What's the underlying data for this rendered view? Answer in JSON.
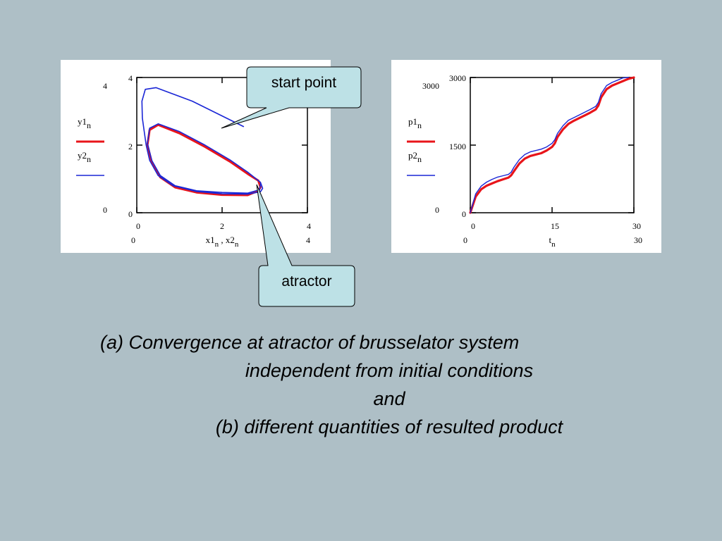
{
  "chart_data": [
    {
      "type": "line",
      "title": "",
      "xlabel": "x1n , x2n",
      "xlabel_parts": {
        "a": "x1",
        "a_sub": "n",
        "sep": " , ",
        "b": "x2",
        "b_sub": "n"
      },
      "ylabel": "",
      "xlim": [
        0,
        4
      ],
      "ylim": [
        0,
        4
      ],
      "x_ticks": [
        "0",
        "2",
        "4"
      ],
      "y_ticks": [
        "0",
        "2",
        "4"
      ],
      "x_range_labels": [
        "0",
        "4"
      ],
      "y_range_labels": [
        "0",
        "4"
      ],
      "legend": [
        {
          "name": "y1",
          "sub": "n",
          "color": "#e8141a"
        },
        {
          "name": "y2",
          "sub": "n",
          "color": "#1a26d6"
        }
      ],
      "legend_position": "left",
      "series": [
        {
          "name": "y1n",
          "color": "#e8141a",
          "points": [
            [
              2.85,
              0.65
            ],
            [
              2.6,
              0.52
            ],
            [
              2.0,
              0.53
            ],
            [
              1.4,
              0.6
            ],
            [
              0.9,
              0.75
            ],
            [
              0.55,
              1.05
            ],
            [
              0.35,
              1.5
            ],
            [
              0.25,
              2.0
            ],
            [
              0.3,
              2.45
            ],
            [
              0.5,
              2.6
            ],
            [
              1.0,
              2.35
            ],
            [
              1.6,
              1.95
            ],
            [
              2.2,
              1.5
            ],
            [
              2.6,
              1.15
            ],
            [
              2.85,
              0.95
            ],
            [
              2.9,
              0.75
            ],
            [
              2.85,
              0.65
            ]
          ]
        },
        {
          "name": "y2n",
          "color": "#1a26d6",
          "points": [
            [
              2.5,
              2.55
            ],
            [
              1.3,
              3.3
            ],
            [
              0.45,
              3.7
            ],
            [
              0.2,
              3.65
            ],
            [
              0.12,
              3.3
            ],
            [
              0.13,
              2.8
            ],
            [
              0.18,
              2.35
            ],
            [
              0.22,
              2.0
            ],
            [
              0.3,
              1.55
            ],
            [
              0.5,
              1.1
            ],
            [
              0.85,
              0.8
            ],
            [
              1.4,
              0.63
            ],
            [
              2.0,
              0.56
            ],
            [
              2.6,
              0.55
            ],
            [
              2.9,
              0.62
            ],
            [
              2.95,
              0.72
            ],
            [
              2.9,
              0.9
            ],
            [
              2.6,
              1.2
            ],
            [
              2.2,
              1.55
            ],
            [
              1.6,
              2.0
            ],
            [
              1.0,
              2.4
            ],
            [
              0.5,
              2.63
            ],
            [
              0.3,
              2.5
            ],
            [
              0.25,
              2.05
            ],
            [
              0.35,
              1.55
            ],
            [
              0.55,
              1.1
            ],
            [
              0.9,
              0.8
            ],
            [
              1.4,
              0.65
            ],
            [
              2.0,
              0.6
            ],
            [
              2.6,
              0.58
            ],
            [
              2.88,
              0.68
            ],
            [
              2.9,
              0.85
            ]
          ]
        }
      ]
    },
    {
      "type": "line",
      "title": "",
      "xlabel": "tn",
      "xlabel_parts": {
        "a": "t",
        "a_sub": "n"
      },
      "ylabel": "",
      "xlim": [
        0,
        30
      ],
      "ylim": [
        0,
        3000
      ],
      "x_ticks": [
        "0",
        "15",
        "30"
      ],
      "y_ticks": [
        "0",
        "1500",
        "3000"
      ],
      "x_range_labels": [
        "0",
        "30"
      ],
      "y_range_labels": [
        "0",
        "3000"
      ],
      "legend": [
        {
          "name": "p1",
          "sub": "n",
          "color": "#e8141a"
        },
        {
          "name": "p2",
          "sub": "n",
          "color": "#1a26d6"
        }
      ],
      "legend_position": "left",
      "series": [
        {
          "name": "p1n",
          "color": "#e8141a",
          "x": [
            0,
            1,
            2,
            3,
            4,
            5,
            6,
            7,
            7.5,
            8,
            9,
            10,
            11,
            12,
            13,
            14,
            15,
            15.5,
            16,
            17,
            18,
            19,
            20,
            21,
            22,
            23,
            23.5,
            24,
            25,
            26,
            27,
            28,
            29,
            30
          ],
          "y": [
            0,
            360,
            520,
            600,
            650,
            700,
            740,
            780,
            830,
            920,
            1090,
            1200,
            1260,
            1290,
            1320,
            1380,
            1460,
            1540,
            1680,
            1850,
            1970,
            2040,
            2100,
            2160,
            2220,
            2290,
            2380,
            2560,
            2740,
            2820,
            2870,
            2920,
            2970,
            3000
          ]
        },
        {
          "name": "p2n",
          "color": "#1a26d6",
          "x": [
            0,
            1,
            2,
            3,
            4,
            5,
            6,
            7,
            7.5,
            8,
            9,
            10,
            11,
            12,
            13,
            14,
            15,
            15.5,
            16,
            17,
            18,
            19,
            20,
            21,
            22,
            23,
            23.5,
            24,
            25,
            26,
            27,
            28,
            29
          ],
          "y": [
            0,
            420,
            590,
            680,
            740,
            790,
            820,
            850,
            900,
            1010,
            1180,
            1290,
            1350,
            1380,
            1410,
            1460,
            1540,
            1620,
            1760,
            1930,
            2050,
            2110,
            2170,
            2230,
            2290,
            2360,
            2450,
            2640,
            2820,
            2890,
            2940,
            2990,
            3000
          ]
        }
      ]
    }
  ],
  "callouts": {
    "start_point": "start point",
    "atractor": "atractor"
  },
  "caption": {
    "line1": "(a)  Convergence at atractor of brusselator system",
    "line2": "independent from initial conditions",
    "line3": "and",
    "line4": "(b) different quantities of resulted product"
  }
}
